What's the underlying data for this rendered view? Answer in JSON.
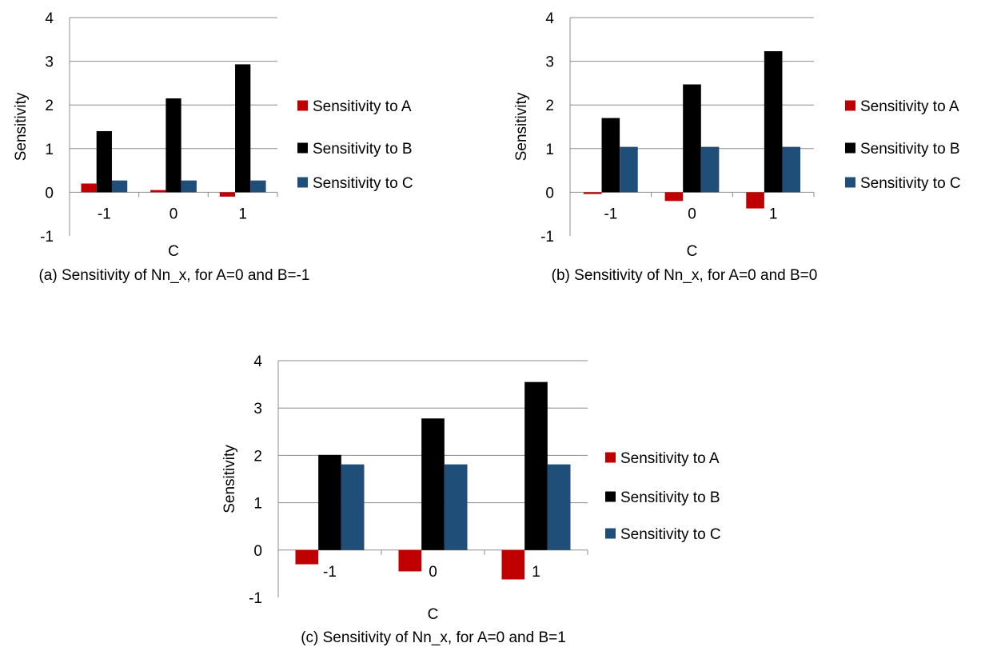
{
  "chart_data": [
    {
      "type": "bar",
      "caption": "(a) Sensitivity of Nn_x, for A=0 and B=-1",
      "categories": [
        "-1",
        "0",
        "1"
      ],
      "xlabel": "C",
      "ylabel": "Sensitivity",
      "ylim": [
        -1,
        4
      ],
      "yticks": [
        "-1",
        "0",
        "1",
        "2",
        "3",
        "4"
      ],
      "grid": true,
      "legend_position": "right",
      "series": [
        {
          "name": "Sensitivity to A",
          "color": "#c00000",
          "values": [
            0.2,
            0.05,
            -0.1
          ]
        },
        {
          "name": "Sensitivity to B",
          "color": "#000000",
          "values": [
            1.4,
            2.15,
            2.93
          ]
        },
        {
          "name": "Sensitivity to C",
          "color": "#1f4e79",
          "values": [
            0.27,
            0.27,
            0.27
          ]
        }
      ]
    },
    {
      "type": "bar",
      "caption": "(b) Sensitivity of Nn_x, for A=0 and B=0",
      "categories": [
        "-1",
        "0",
        "1"
      ],
      "xlabel": "C",
      "ylabel": "Sensitivity",
      "ylim": [
        -1,
        4
      ],
      "yticks": [
        "-1",
        "0",
        "1",
        "2",
        "3",
        "4"
      ],
      "grid": true,
      "legend_position": "right",
      "series": [
        {
          "name": "Sensitivity to A",
          "color": "#c00000",
          "values": [
            -0.04,
            -0.2,
            -0.37
          ]
        },
        {
          "name": "Sensitivity to B",
          "color": "#000000",
          "values": [
            1.7,
            2.47,
            3.23
          ]
        },
        {
          "name": "Sensitivity to C",
          "color": "#1f4e79",
          "values": [
            1.04,
            1.04,
            1.04
          ]
        }
      ]
    },
    {
      "type": "bar",
      "caption": "(c) Sensitivity of Nn_x, for A=0 and B=1",
      "categories": [
        "-1",
        "0",
        "1"
      ],
      "xlabel": "C",
      "ylabel": "Sensitivity",
      "ylim": [
        -1,
        4
      ],
      "yticks": [
        "-1",
        "0",
        "1",
        "2",
        "3",
        "4"
      ],
      "grid": true,
      "legend_position": "right",
      "series": [
        {
          "name": "Sensitivity to A",
          "color": "#c00000",
          "values": [
            -0.3,
            -0.45,
            -0.62
          ]
        },
        {
          "name": "Sensitivity to B",
          "color": "#000000",
          "values": [
            2.01,
            2.78,
            3.55
          ]
        },
        {
          "name": "Sensitivity to C",
          "color": "#1f4e79",
          "values": [
            1.81,
            1.81,
            1.81
          ]
        }
      ]
    }
  ]
}
